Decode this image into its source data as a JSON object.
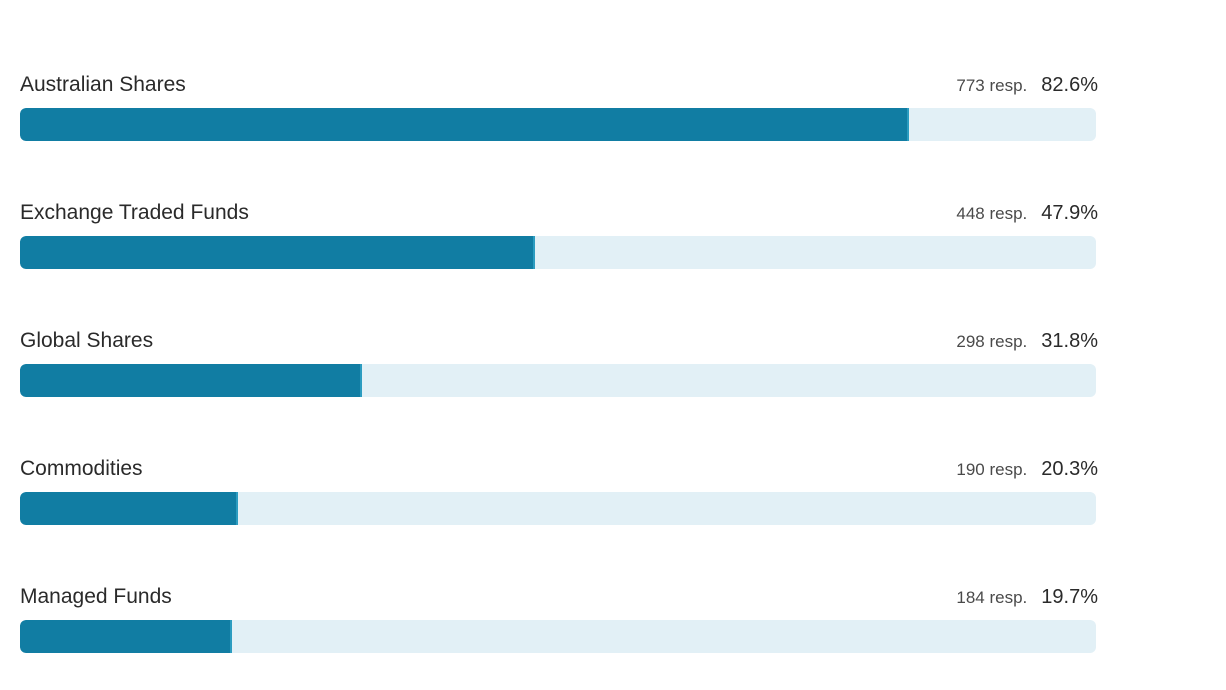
{
  "chart_data": {
    "type": "bar",
    "orientation": "horizontal",
    "categories": [
      "Australian Shares",
      "Exchange Traded Funds",
      "Global Shares",
      "Commodities",
      "Managed Funds"
    ],
    "responses": [
      773,
      448,
      298,
      190,
      184
    ],
    "values": [
      82.6,
      47.9,
      31.8,
      20.3,
      19.7
    ],
    "response_labels": [
      "773 resp.",
      "448 resp.",
      "298 resp.",
      "190 resp.",
      "184 resp."
    ],
    "percent_labels": [
      "82.6%",
      "47.9%",
      "31.8%",
      "20.3%",
      "19.7%"
    ],
    "xlim": [
      0,
      100
    ],
    "colors": {
      "fill": "#117da3",
      "track": "#e2f0f6"
    }
  }
}
